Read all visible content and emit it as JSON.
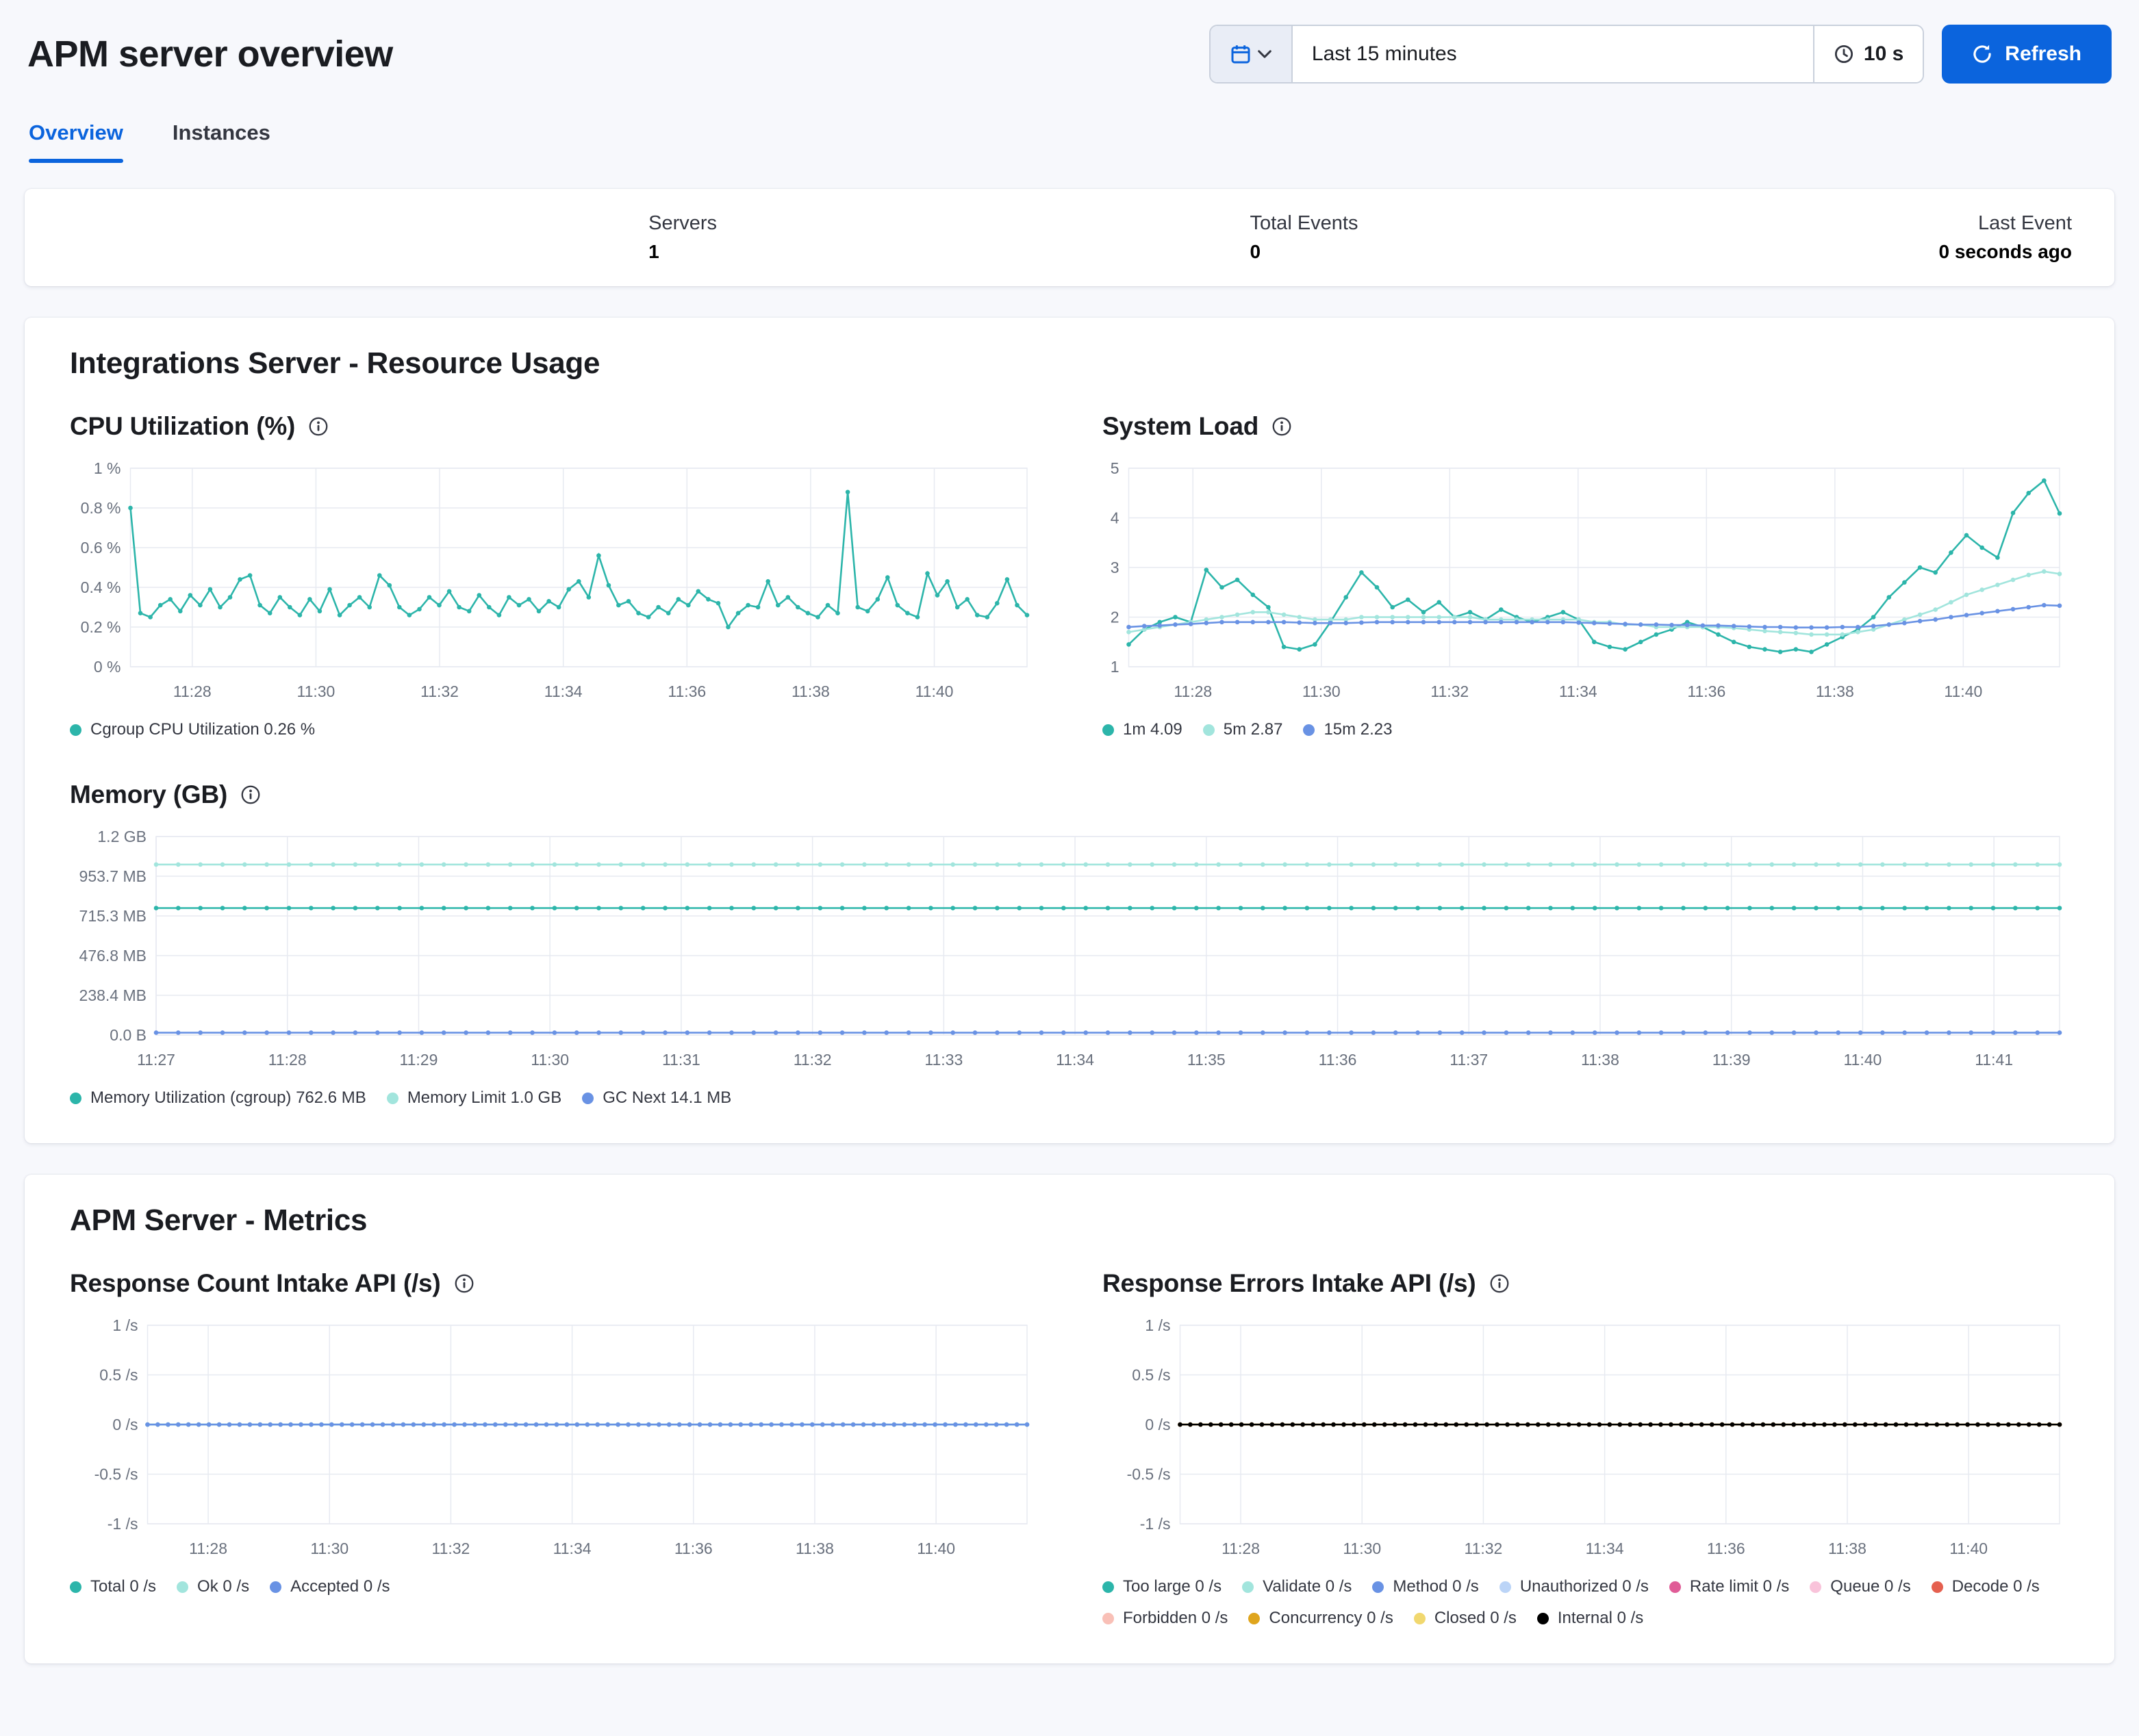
{
  "page": {
    "title": "APM server overview"
  },
  "toolbar": {
    "time_range": "Last 15 minutes",
    "refresh_interval": "10 s",
    "refresh_label": "Refresh"
  },
  "tabs": [
    {
      "label": "Overview",
      "active": true
    },
    {
      "label": "Instances",
      "active": false
    }
  ],
  "stats": [
    {
      "label": "Servers",
      "value": "1"
    },
    {
      "label": "Total Events",
      "value": "0"
    },
    {
      "label": "Last Event",
      "value": "0 seconds ago"
    }
  ],
  "sections": [
    {
      "title": "Integrations Server - Resource Usage"
    },
    {
      "title": "APM Server - Metrics"
    }
  ],
  "colors": {
    "primary": "#0b64dd",
    "teal": "#2cb5aa",
    "mint": "#a2e5dd",
    "blue": "#6992e4",
    "light_blue": "#bbd4f7",
    "pink": "#e05c97",
    "light_pink": "#f9c3da",
    "red": "#e5604f",
    "light_salmon": "#f9c0b7",
    "amber": "#dfa51d",
    "yellow": "#f1d86f",
    "black": "#000000"
  },
  "chart_data": [
    {
      "type": "line",
      "title": "CPU Utilization (%)",
      "x_range": [
        27.0,
        41.5
      ],
      "x_ticks": [
        {
          "v": 28,
          "label": "11:28"
        },
        {
          "v": 30,
          "label": "11:30"
        },
        {
          "v": 32,
          "label": "11:32"
        },
        {
          "v": 34,
          "label": "11:34"
        },
        {
          "v": 36,
          "label": "11:36"
        },
        {
          "v": 38,
          "label": "11:38"
        },
        {
          "v": 40,
          "label": "11:40"
        }
      ],
      "ylim": [
        0,
        1
      ],
      "y_ticks": [
        {
          "v": 0,
          "label": "0 %"
        },
        {
          "v": 0.2,
          "label": "0.2 %"
        },
        {
          "v": 0.4,
          "label": "0.4 %"
        },
        {
          "v": 0.6,
          "label": "0.6 %"
        },
        {
          "v": 0.8,
          "label": "0.8 %"
        },
        {
          "v": 1,
          "label": "1 %"
        }
      ],
      "series": [
        {
          "name": "Cgroup CPU Utilization 0.26 %",
          "color": "#2cb5aa",
          "values": [
            0.8,
            0.27,
            0.25,
            0.31,
            0.34,
            0.28,
            0.36,
            0.31,
            0.39,
            0.3,
            0.35,
            0.44,
            0.46,
            0.31,
            0.27,
            0.35,
            0.3,
            0.26,
            0.34,
            0.28,
            0.39,
            0.26,
            0.31,
            0.35,
            0.3,
            0.46,
            0.41,
            0.3,
            0.26,
            0.29,
            0.35,
            0.31,
            0.38,
            0.3,
            0.28,
            0.36,
            0.3,
            0.26,
            0.35,
            0.31,
            0.34,
            0.28,
            0.33,
            0.3,
            0.39,
            0.43,
            0.35,
            0.56,
            0.41,
            0.31,
            0.33,
            0.27,
            0.25,
            0.3,
            0.27,
            0.34,
            0.31,
            0.38,
            0.34,
            0.32,
            0.2,
            0.27,
            0.31,
            0.3,
            0.43,
            0.31,
            0.35,
            0.3,
            0.27,
            0.25,
            0.31,
            0.27,
            0.88,
            0.3,
            0.28,
            0.34,
            0.45,
            0.31,
            0.27,
            0.25,
            0.47,
            0.36,
            0.43,
            0.3,
            0.34,
            0.26,
            0.25,
            0.32,
            0.44,
            0.31,
            0.26
          ]
        }
      ]
    },
    {
      "type": "line",
      "title": "System Load",
      "x_range": [
        27.0,
        41.5
      ],
      "x_ticks": [
        {
          "v": 28,
          "label": "11:28"
        },
        {
          "v": 30,
          "label": "11:30"
        },
        {
          "v": 32,
          "label": "11:32"
        },
        {
          "v": 34,
          "label": "11:34"
        },
        {
          "v": 36,
          "label": "11:36"
        },
        {
          "v": 38,
          "label": "11:38"
        },
        {
          "v": 40,
          "label": "11:40"
        }
      ],
      "ylim": [
        1,
        5
      ],
      "y_ticks": [
        {
          "v": 1,
          "label": "1"
        },
        {
          "v": 2,
          "label": "2"
        },
        {
          "v": 3,
          "label": "3"
        },
        {
          "v": 4,
          "label": "4"
        },
        {
          "v": 5,
          "label": "5"
        }
      ],
      "series": [
        {
          "name": "1m 4.09",
          "color": "#2cb5aa",
          "values": [
            1.45,
            1.75,
            1.9,
            2.0,
            1.9,
            2.95,
            2.6,
            2.75,
            2.45,
            2.2,
            1.4,
            1.35,
            1.45,
            1.9,
            2.4,
            2.9,
            2.6,
            2.2,
            2.35,
            2.1,
            2.3,
            2.0,
            2.1,
            1.95,
            2.15,
            2.0,
            1.9,
            2.0,
            2.1,
            1.95,
            1.5,
            1.4,
            1.35,
            1.5,
            1.65,
            1.75,
            1.9,
            1.8,
            1.65,
            1.5,
            1.4,
            1.35,
            1.3,
            1.35,
            1.3,
            1.45,
            1.6,
            1.75,
            2.0,
            2.4,
            2.7,
            3.0,
            2.9,
            3.3,
            3.65,
            3.4,
            3.2,
            4.1,
            4.5,
            4.75,
            4.09
          ]
        },
        {
          "name": "5m 2.87",
          "color": "#a2e5dd",
          "values": [
            1.7,
            1.75,
            1.8,
            1.85,
            1.9,
            1.95,
            2.0,
            2.05,
            2.1,
            2.1,
            2.05,
            2.0,
            1.95,
            1.95,
            1.95,
            2.0,
            2.0,
            2.0,
            2.0,
            2.0,
            2.0,
            2.0,
            2.0,
            1.95,
            1.95,
            1.95,
            1.95,
            1.95,
            1.95,
            1.95,
            1.9,
            1.9,
            1.85,
            1.85,
            1.8,
            1.8,
            1.8,
            1.8,
            1.8,
            1.78,
            1.75,
            1.72,
            1.7,
            1.68,
            1.65,
            1.65,
            1.65,
            1.7,
            1.75,
            1.85,
            1.95,
            2.05,
            2.15,
            2.3,
            2.45,
            2.55,
            2.65,
            2.75,
            2.85,
            2.92,
            2.87
          ]
        },
        {
          "name": "15m 2.23",
          "color": "#6992e4",
          "values": [
            1.8,
            1.82,
            1.83,
            1.85,
            1.86,
            1.88,
            1.9,
            1.9,
            1.9,
            1.9,
            1.9,
            1.89,
            1.88,
            1.88,
            1.88,
            1.89,
            1.9,
            1.9,
            1.9,
            1.9,
            1.9,
            1.9,
            1.9,
            1.9,
            1.9,
            1.9,
            1.9,
            1.9,
            1.9,
            1.89,
            1.88,
            1.87,
            1.86,
            1.85,
            1.85,
            1.84,
            1.84,
            1.83,
            1.83,
            1.82,
            1.81,
            1.8,
            1.8,
            1.79,
            1.79,
            1.79,
            1.8,
            1.8,
            1.82,
            1.85,
            1.88,
            1.92,
            1.95,
            2.0,
            2.04,
            2.08,
            2.12,
            2.16,
            2.2,
            2.24,
            2.23
          ]
        }
      ]
    },
    {
      "type": "line",
      "title": "Memory (GB)",
      "x_range": [
        27.0,
        41.5
      ],
      "x_ticks": [
        {
          "v": 27,
          "label": "11:27"
        },
        {
          "v": 28,
          "label": "11:28"
        },
        {
          "v": 29,
          "label": "11:29"
        },
        {
          "v": 30,
          "label": "11:30"
        },
        {
          "v": 31,
          "label": "11:31"
        },
        {
          "v": 32,
          "label": "11:32"
        },
        {
          "v": 33,
          "label": "11:33"
        },
        {
          "v": 34,
          "label": "11:34"
        },
        {
          "v": 35,
          "label": "11:35"
        },
        {
          "v": 36,
          "label": "11:36"
        },
        {
          "v": 37,
          "label": "11:37"
        },
        {
          "v": 38,
          "label": "11:38"
        },
        {
          "v": 39,
          "label": "11:39"
        },
        {
          "v": 40,
          "label": "11:40"
        },
        {
          "v": 41,
          "label": "11:41"
        }
      ],
      "ylim": [
        0,
        1192.1
      ],
      "y_ticks": [
        {
          "v": 0,
          "label": "0.0 B"
        },
        {
          "v": 238.4,
          "label": "238.4 MB"
        },
        {
          "v": 476.8,
          "label": "476.8 MB"
        },
        {
          "v": 715.3,
          "label": "715.3 MB"
        },
        {
          "v": 953.7,
          "label": "953.7 MB"
        },
        {
          "v": 1192.1,
          "label": "1.2 GB"
        }
      ],
      "series": [
        {
          "name": "Memory Utilization (cgroup) 762.6 MB",
          "color": "#2cb5aa",
          "const": 762.6,
          "count": 87
        },
        {
          "name": "Memory Limit 1.0 GB",
          "color": "#a2e5dd",
          "const": 1024,
          "count": 87
        },
        {
          "name": "GC Next 14.1 MB",
          "color": "#6992e4",
          "const": 14.1,
          "count": 87
        }
      ]
    },
    {
      "type": "line",
      "title": "Response Count Intake API (/s)",
      "x_range": [
        27.0,
        41.5
      ],
      "x_ticks": [
        {
          "v": 28,
          "label": "11:28"
        },
        {
          "v": 30,
          "label": "11:30"
        },
        {
          "v": 32,
          "label": "11:32"
        },
        {
          "v": 34,
          "label": "11:34"
        },
        {
          "v": 36,
          "label": "11:36"
        },
        {
          "v": 38,
          "label": "11:38"
        },
        {
          "v": 40,
          "label": "11:40"
        }
      ],
      "ylim": [
        -1,
        1
      ],
      "y_ticks": [
        {
          "v": -1,
          "label": "-1 /s"
        },
        {
          "v": -0.5,
          "label": "-0.5 /s"
        },
        {
          "v": 0,
          "label": "0 /s"
        },
        {
          "v": 0.5,
          "label": "0.5 /s"
        },
        {
          "v": 1,
          "label": "1 /s"
        }
      ],
      "series": [
        {
          "name": "Total 0 /s",
          "color": "#2cb5aa",
          "const": 0,
          "count": 87
        },
        {
          "name": "Ok 0 /s",
          "color": "#a2e5dd",
          "const": 0,
          "count": 87
        },
        {
          "name": "Accepted 0 /s",
          "color": "#6992e4",
          "const": 0,
          "count": 87
        }
      ]
    },
    {
      "type": "line",
      "title": "Response Errors Intake API (/s)",
      "x_range": [
        27.0,
        41.5
      ],
      "x_ticks": [
        {
          "v": 28,
          "label": "11:28"
        },
        {
          "v": 30,
          "label": "11:30"
        },
        {
          "v": 32,
          "label": "11:32"
        },
        {
          "v": 34,
          "label": "11:34"
        },
        {
          "v": 36,
          "label": "11:36"
        },
        {
          "v": 38,
          "label": "11:38"
        },
        {
          "v": 40,
          "label": "11:40"
        }
      ],
      "ylim": [
        -1,
        1
      ],
      "y_ticks": [
        {
          "v": -1,
          "label": "-1 /s"
        },
        {
          "v": -0.5,
          "label": "-0.5 /s"
        },
        {
          "v": 0,
          "label": "0 /s"
        },
        {
          "v": 0.5,
          "label": "0.5 /s"
        },
        {
          "v": 1,
          "label": "1 /s"
        }
      ],
      "series": [
        {
          "name": "Too large 0 /s",
          "color": "#2cb5aa",
          "const": 0,
          "count": 87
        },
        {
          "name": "Validate 0 /s",
          "color": "#a2e5dd",
          "const": 0,
          "count": 87
        },
        {
          "name": "Method 0 /s",
          "color": "#6992e4",
          "const": 0,
          "count": 87
        },
        {
          "name": "Unauthorized 0 /s",
          "color": "#bbd4f7",
          "const": 0,
          "count": 87
        },
        {
          "name": "Rate limit 0 /s",
          "color": "#e05c97",
          "const": 0,
          "count": 87
        },
        {
          "name": "Queue 0 /s",
          "color": "#f9c3da",
          "const": 0,
          "count": 87
        },
        {
          "name": "Decode 0 /s",
          "color": "#e5604f",
          "const": 0,
          "count": 87
        },
        {
          "name": "Forbidden 0 /s",
          "color": "#f9c0b7",
          "const": 0,
          "count": 87
        },
        {
          "name": "Concurrency 0 /s",
          "color": "#dfa51d",
          "const": 0,
          "count": 87
        },
        {
          "name": "Closed 0 /s",
          "color": "#f1d86f",
          "const": 0,
          "count": 87
        },
        {
          "name": "Internal 0 /s",
          "color": "#000000",
          "const": 0,
          "count": 87
        }
      ]
    }
  ]
}
